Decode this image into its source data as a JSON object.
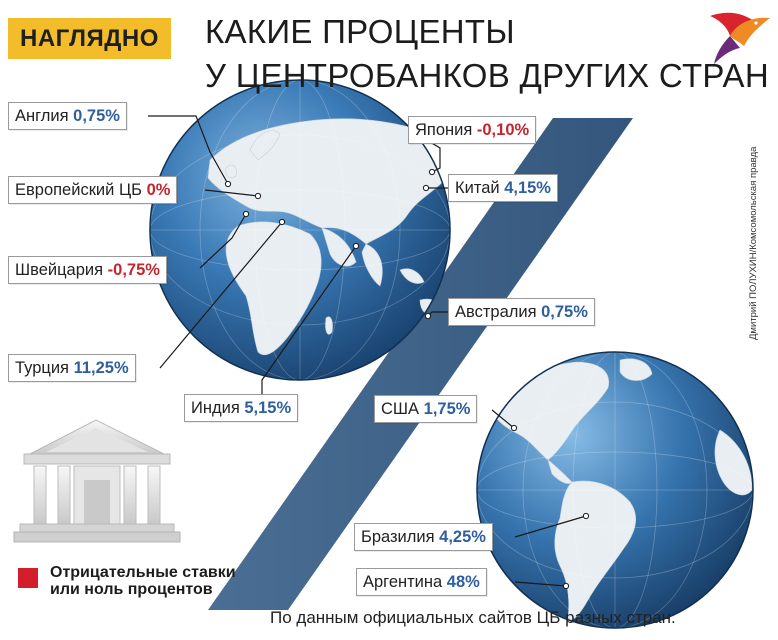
{
  "header": {
    "badge": "НАГЛЯДНО",
    "title_line1": "КАКИЕ ПРОЦЕНТЫ",
    "title_line2": "У ЦЕНТРОБАНКОВ ДРУГИХ СТРАН"
  },
  "credit": "Дмитрий ПОЛУХИН/Комсомольская правда",
  "rates": [
    {
      "country": "Англия",
      "value": "0,75%",
      "negative": false
    },
    {
      "country": "Европейский ЦБ",
      "value": "0%",
      "negative": true
    },
    {
      "country": "Швейцария",
      "value": "-0,75%",
      "negative": true
    },
    {
      "country": "Турция",
      "value": "11,25%",
      "negative": false
    },
    {
      "country": "Индия",
      "value": "5,15%",
      "negative": false
    },
    {
      "country": "Япония",
      "value": "-0,10%",
      "negative": true
    },
    {
      "country": "Китай",
      "value": "4,15%",
      "negative": false
    },
    {
      "country": "Австралия",
      "value": "0,75%",
      "negative": false
    },
    {
      "country": "США",
      "value": "1,75%",
      "negative": false
    },
    {
      "country": "Бразилия",
      "value": "4,25%",
      "negative": false
    },
    {
      "country": "Аргентина",
      "value": "48%",
      "negative": false
    }
  ],
  "legend": {
    "text_line1": "Отрицательные ставки",
    "text_line2": "или ноль процентов",
    "color": "#d21f2b"
  },
  "footnote": "По данным официальных сайтов ЦБ разных стран.",
  "colors": {
    "positive": "#2f5f9e",
    "negative": "#c3262c",
    "badge": "#f2bc2a",
    "ocean": "#2f6ca3",
    "land": "#e8eef3",
    "slash": "#3f638a"
  }
}
